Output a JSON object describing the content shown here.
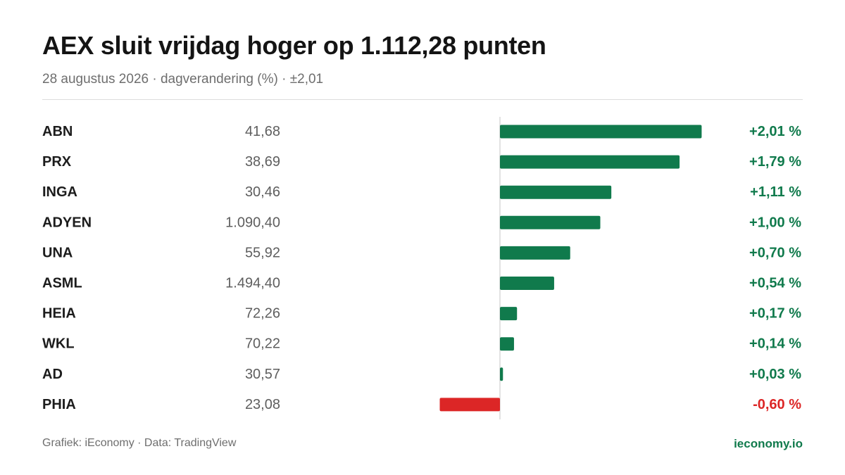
{
  "title": "AEX sluit vrijdag hoger op 1.112,28 punten",
  "subtitle": "28 augustus 2026 · dagverandering (%) · ±2,01",
  "footer": {
    "source": "Grafiek: iEconomy · Data: TradingView",
    "brand": "ieconomy.io"
  },
  "colors": {
    "positive": "#107a4c",
    "negative": "#dc2626",
    "zero_line": "#cfcfcf"
  },
  "chart_data": {
    "type": "bar",
    "orientation": "horizontal",
    "xlim": [
      -2.01,
      2.01
    ],
    "rows": [
      {
        "ticker": "ABN",
        "price": "41,68",
        "change": 2.01,
        "change_label": "+2,01 %"
      },
      {
        "ticker": "PRX",
        "price": "38,69",
        "change": 1.79,
        "change_label": "+1,79 %"
      },
      {
        "ticker": "INGA",
        "price": "30,46",
        "change": 1.11,
        "change_label": "+1,11 %"
      },
      {
        "ticker": "ADYEN",
        "price": "1.090,40",
        "change": 1.0,
        "change_label": "+1,00 %"
      },
      {
        "ticker": "UNA",
        "price": "55,92",
        "change": 0.7,
        "change_label": "+0,70 %"
      },
      {
        "ticker": "ASML",
        "price": "1.494,40",
        "change": 0.54,
        "change_label": "+0,54 %"
      },
      {
        "ticker": "HEIA",
        "price": "72,26",
        "change": 0.17,
        "change_label": "+0,17 %"
      },
      {
        "ticker": "WKL",
        "price": "70,22",
        "change": 0.14,
        "change_label": "+0,14 %"
      },
      {
        "ticker": "AD",
        "price": "30,57",
        "change": 0.03,
        "change_label": "+0,03 %"
      },
      {
        "ticker": "PHIA",
        "price": "23,08",
        "change": -0.6,
        "change_label": "-0,60 %"
      }
    ]
  }
}
